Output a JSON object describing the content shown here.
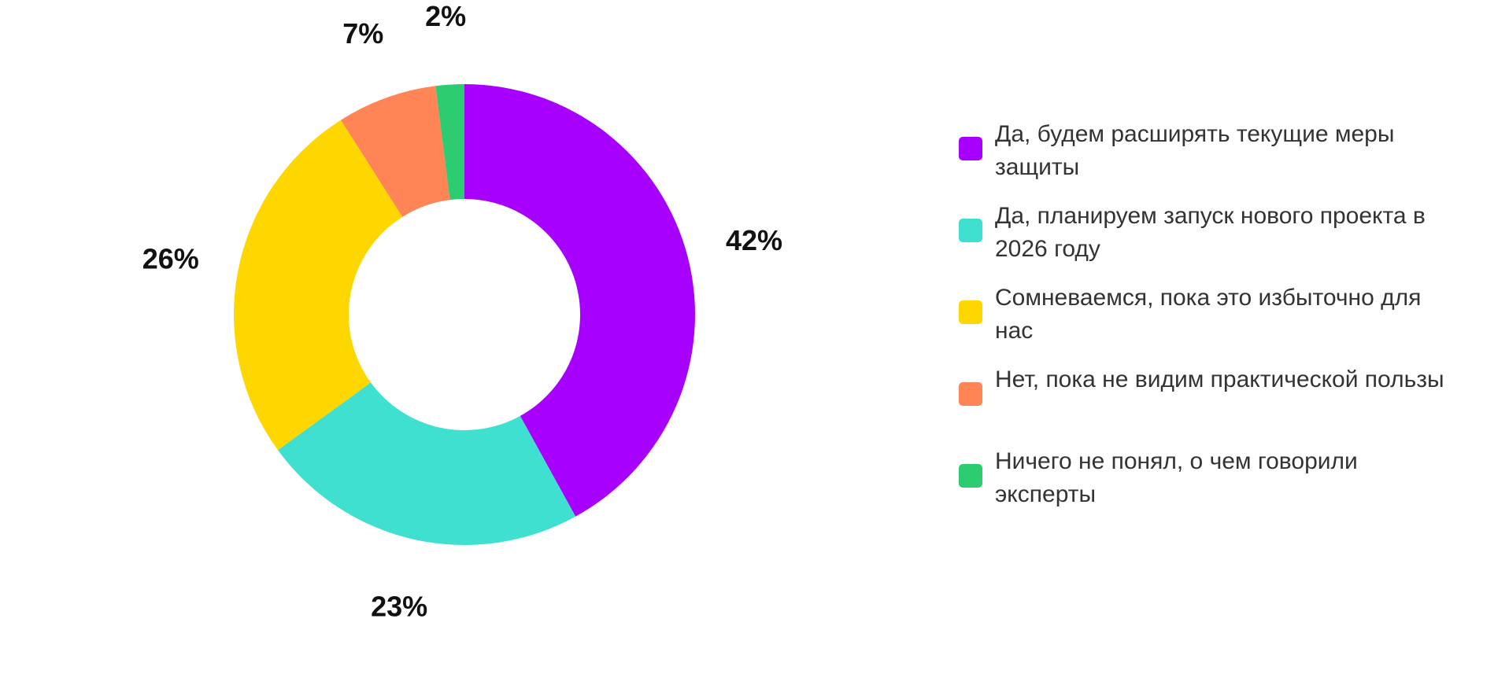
{
  "chart_data": {
    "type": "pie",
    "donut": true,
    "title": "",
    "legend_position": "right",
    "slices": [
      {
        "label": "Да, будем расширять текущие меры защиты",
        "value": 42,
        "value_label": "42%",
        "color": "#A700FF"
      },
      {
        "label": "Да, планируем запуск нового проекта в 2026 году",
        "value": 23,
        "value_label": "23%",
        "color": "#40E0D0"
      },
      {
        "label": "Сомневаемся, пока это избыточно для нас",
        "value": 26,
        "value_label": "26%",
        "color": "#FFD700"
      },
      {
        "label": "Нет, пока не видим практической пользы",
        "value": 7,
        "value_label": "7%",
        "color": "#FF8456"
      },
      {
        "label": "Ничего не понял, о чем говорили эксперты",
        "value": 2,
        "value_label": "2%",
        "color": "#2ECC71"
      }
    ]
  }
}
